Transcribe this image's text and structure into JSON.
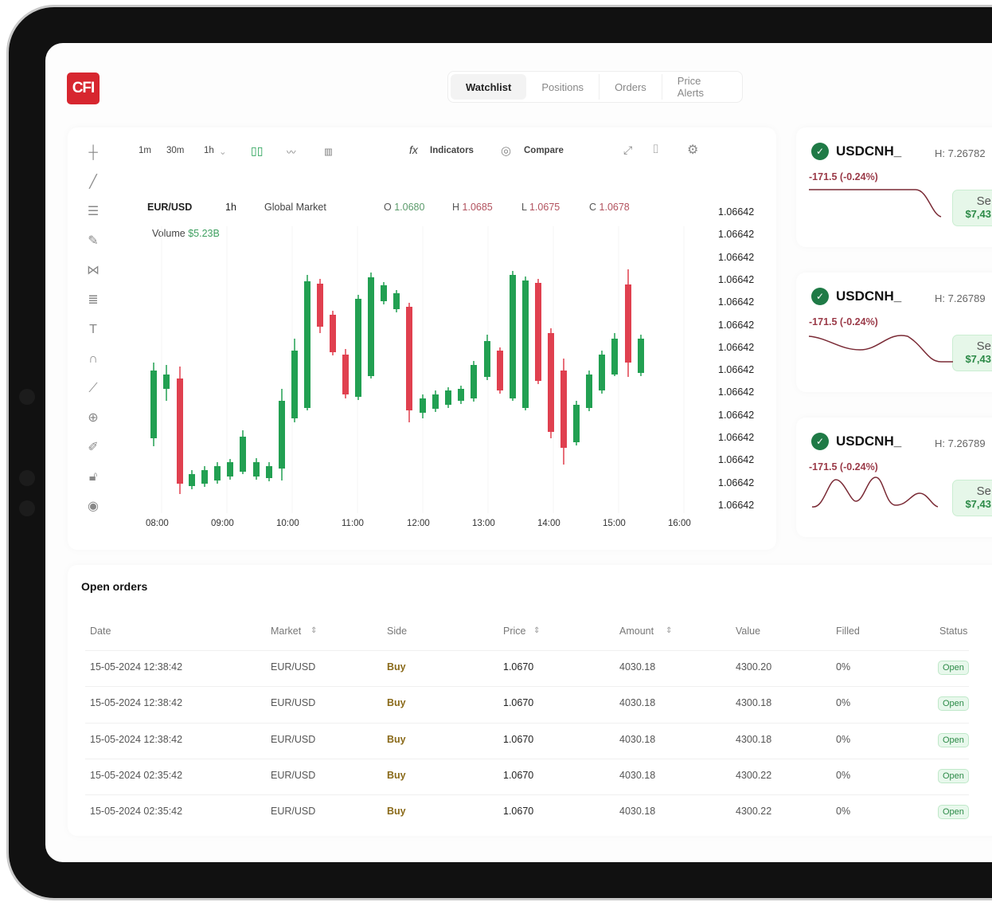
{
  "brand": {
    "logo": "CFI",
    "color": "#d7262f"
  },
  "tabs": [
    {
      "label": "Watchlist",
      "active": true
    },
    {
      "label": "Positions"
    },
    {
      "label": "Orders"
    },
    {
      "label": "Price Alerts"
    }
  ],
  "toolbar": {
    "intervals": [
      "1m",
      "30m",
      "1h"
    ],
    "indicators": "Indicators",
    "compare": "Compare"
  },
  "chart": {
    "symbol": "EUR/USD",
    "interval": "1h",
    "market": "Global Market",
    "ohlc": {
      "o_label": "O",
      "o": "1.0680",
      "h_label": "H",
      "h": "1.0685",
      "l_label": "L",
      "l": "1.0675",
      "c_label": "C",
      "c": "1.0678"
    },
    "volume_label": "Volume",
    "volume": "$5.23B",
    "price_labels": [
      "1.06642",
      "1.06642",
      "1.06642",
      "1.06642",
      "1.06642",
      "1.06642",
      "1.06642",
      "1.06642",
      "1.06642",
      "1.06642",
      "1.06642",
      "1.06642",
      "1.06642",
      "1.06642"
    ],
    "time_labels": [
      "08:00",
      "09:00",
      "10:00",
      "11:00",
      "12:00",
      "13:00",
      "14:00",
      "15:00",
      "16:00"
    ],
    "colors": {
      "up": "#22a052",
      "down": "#e0404f"
    }
  },
  "watchlist": [
    {
      "name": "USDCNH_",
      "high": "H: 7.26782",
      "change": "-171.5 (-0.24%)",
      "sell_label": "Se",
      "sell_value": "$7,43"
    },
    {
      "name": "USDCNH_",
      "high": "H: 7.26789",
      "change": "-171.5 (-0.24%)",
      "sell_label": "Se",
      "sell_value": "$7,43"
    },
    {
      "name": "USDCNH_",
      "high": "H: 7.26789",
      "change": "-171.5 (-0.24%)",
      "sell_label": "Se",
      "sell_value": "$7,43"
    }
  ],
  "orders": {
    "title": "Open orders",
    "columns": [
      "Date",
      "Market",
      "Side",
      "Price",
      "Amount",
      "Value",
      "Filled",
      "Status"
    ],
    "rows": [
      [
        "15-05-2024 12:38:42",
        "EUR/USD",
        "Buy",
        "1.0670",
        "4030.18",
        "4300.20",
        "0%",
        "Open"
      ],
      [
        "15-05-2024 12:38:42",
        "EUR/USD",
        "Buy",
        "1.0670",
        "4030.18",
        "4300.18",
        "0%",
        "Open"
      ],
      [
        "15-05-2024 12:38:42",
        "EUR/USD",
        "Buy",
        "1.0670",
        "4030.18",
        "4300.18",
        "0%",
        "Open"
      ],
      [
        "15-05-2024 02:35:42",
        "EUR/USD",
        "Buy",
        "1.0670",
        "4030.18",
        "4300.22",
        "0%",
        "Open"
      ],
      [
        "15-05-2024 02:35:42",
        "EUR/USD",
        "Buy",
        "1.0670",
        "4030.18",
        "4300.22",
        "0%",
        "Open"
      ]
    ]
  }
}
